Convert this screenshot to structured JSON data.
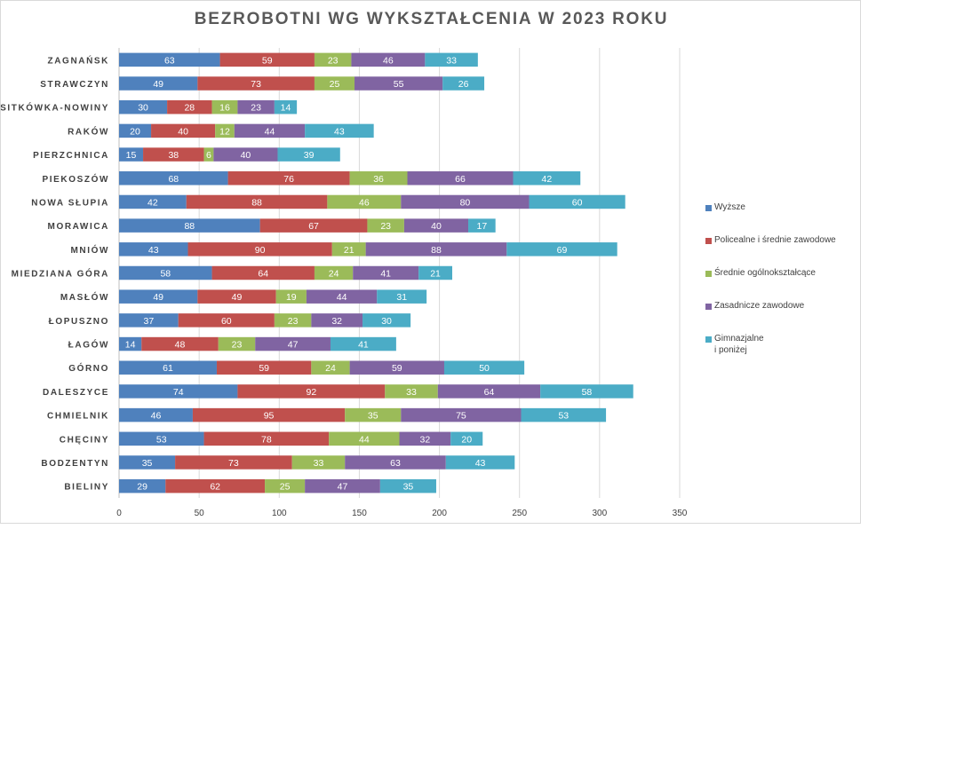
{
  "chart_data": {
    "type": "bar",
    "orientation": "horizontal",
    "stacked": true,
    "title": "BEZROBOTNI WG WYKSZTAŁCENIA W 2023 ROKU",
    "categories": [
      "ZAGNAŃSK",
      "STRAWCZYN",
      "SITKÓWKA-NOWINY",
      "RAKÓW",
      "PIERZCHNICA",
      "PIEKOSZÓW",
      "NOWA SŁUPIA",
      "MORAWICA",
      "MNIÓW",
      "MIEDZIANA GÓRA",
      "MASŁÓW",
      "ŁOPUSZNO",
      "ŁAGÓW",
      "GÓRNO",
      "DALESZYCE",
      "CHMIELNIK",
      "CHĘCINY",
      "BODZENTYN",
      "BIELINY"
    ],
    "series": [
      {
        "name": "Wyższe",
        "color": "#4f81bd",
        "values": [
          63,
          49,
          30,
          20,
          15,
          68,
          42,
          88,
          43,
          58,
          49,
          37,
          14,
          61,
          74,
          46,
          53,
          35,
          29
        ]
      },
      {
        "name": "Policealne i średnie zawodowe",
        "color": "#c0504d",
        "values": [
          59,
          73,
          28,
          40,
          38,
          76,
          88,
          67,
          90,
          64,
          49,
          60,
          48,
          59,
          92,
          95,
          78,
          73,
          62
        ]
      },
      {
        "name": "Średnie ogólnokształcące",
        "color": "#9bbb59",
        "values": [
          23,
          25,
          16,
          12,
          6,
          36,
          46,
          23,
          21,
          24,
          19,
          23,
          23,
          24,
          33,
          35,
          44,
          33,
          25
        ]
      },
      {
        "name": "Zasadnicze zawodowe",
        "color": "#8064a2",
        "values": [
          46,
          55,
          23,
          44,
          40,
          66,
          80,
          40,
          88,
          41,
          44,
          32,
          47,
          59,
          64,
          75,
          32,
          63,
          47
        ]
      },
      {
        "name": "Gimnazjalne\ni poniżej",
        "color": "#4bacc6",
        "values": [
          33,
          26,
          14,
          43,
          39,
          42,
          60,
          17,
          69,
          21,
          31,
          30,
          41,
          50,
          58,
          53,
          20,
          43,
          35
        ]
      }
    ],
    "xlim": [
      0,
      350
    ],
    "xticks": [
      0,
      50,
      100,
      150,
      200,
      250,
      300,
      350
    ],
    "grid": true,
    "data_labels": true,
    "legend_position": "right"
  }
}
